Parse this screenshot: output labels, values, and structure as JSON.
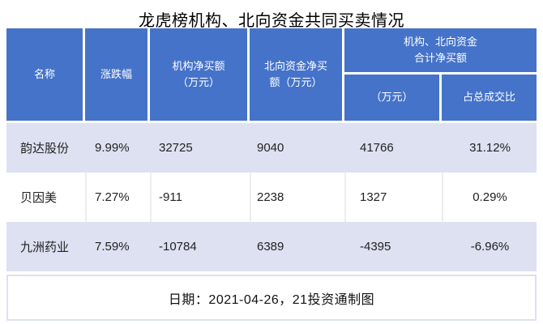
{
  "title": "龙虎榜机构、北向资金共同买卖情况",
  "table": {
    "headers": {
      "name": "名称",
      "change": "涨跌幅",
      "inst_net_buy": "机构净买额\n（万元）",
      "north_net_buy": "北向资金净买\n额（万元）",
      "combined_group": "机构、北向资金\n合计净买额",
      "combined_amount": "（万元）",
      "combined_ratio": "占总成交比"
    },
    "rows": [
      {
        "name": "韵达股份",
        "change": "9.99%",
        "inst": "32725",
        "north": "9040",
        "total": "41766",
        "ratio": "31.12%"
      },
      {
        "name": "贝因美",
        "change": "7.27%",
        "inst": "-911",
        "north": "2238",
        "total": "1327",
        "ratio": "0.29%"
      },
      {
        "name": "九洲药业",
        "change": "7.59%",
        "inst": "-10784",
        "north": "6389",
        "total": "-4395",
        "ratio": "-6.96%"
      }
    ]
  },
  "footer": {
    "text": "日期：2021-04-26，21投资通制图"
  },
  "colors": {
    "header_bg": "#4573c9",
    "row_alt_bg": "#dde1f1",
    "cell_sep": "#ededed",
    "header_text": "#ffffff",
    "body_text": "#222222"
  }
}
